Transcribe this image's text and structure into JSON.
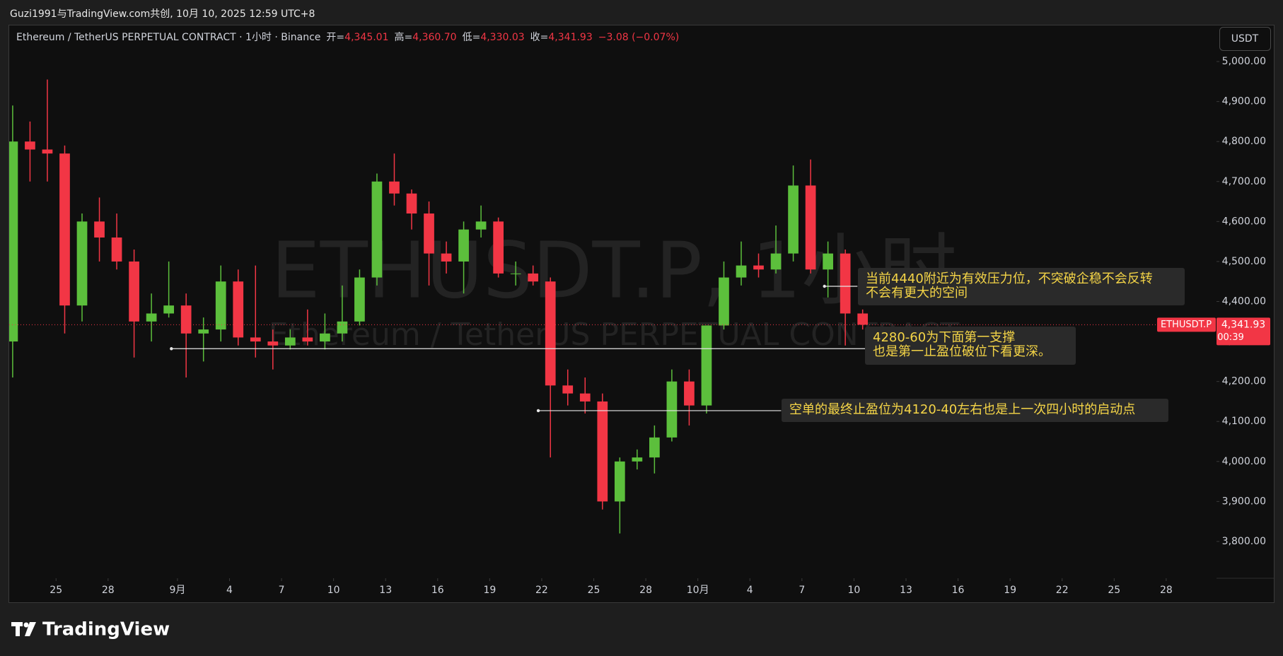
{
  "chart_data": {
    "type": "candlestick",
    "attribution": "Guzi1991与TradingView.com共创, 10月 10, 2025 12:59 UTC+8",
    "legend": {
      "title": "Ethereum / TetherUS PERPETUAL CONTRACT · 1小时 · Binance",
      "open_label": "开=",
      "open": "4,345.01",
      "high_label": "高=",
      "high": "4,360.70",
      "low_label": "低=",
      "low": "4,330.03",
      "close_label": "收=",
      "close": "4,341.93",
      "change": "−3.08 (−0.07%)"
    },
    "currency": "USDT",
    "watermark": {
      "symbol": "ETHUSDT.P, 1小时",
      "description": "Ethereum / TetherUS PERPETUAL CONTRACT"
    },
    "brand": "TradingView",
    "up_color": "#5cbf3c",
    "down_color": "#f23645",
    "grid": false,
    "x": [
      234,
      235,
      236,
      237,
      238,
      239,
      240,
      241,
      242,
      243,
      244,
      245,
      246,
      247,
      248,
      249,
      250,
      251,
      252,
      253,
      254,
      255,
      256,
      257,
      258,
      259,
      260,
      261,
      262,
      263,
      264,
      265,
      266,
      267,
      268,
      269,
      270,
      271,
      272,
      273,
      274,
      275,
      276,
      277,
      278,
      279,
      280,
      281,
      282,
      283
    ],
    "open": [
      4300,
      4800,
      4780,
      4770,
      4390,
      4600,
      4560,
      4500,
      4350,
      4370,
      4390,
      4320,
      4330,
      4450,
      4310,
      4300,
      4290,
      4310,
      4300,
      4320,
      4350,
      4460,
      4700,
      4670,
      4620,
      4520,
      4500,
      4580,
      4600,
      4470,
      4470,
      4450,
      4190,
      4170,
      4150,
      3900,
      4000,
      4010,
      4060,
      4200,
      4140,
      4340,
      4460,
      4490,
      4480,
      4520,
      4690,
      4480,
      4520,
      4370
    ],
    "high": [
      4890,
      4850,
      4955,
      4790,
      4620,
      4660,
      4620,
      4530,
      4420,
      4500,
      4420,
      4360,
      4490,
      4480,
      4490,
      4330,
      4330,
      4380,
      4370,
      4440,
      4480,
      4720,
      4770,
      4680,
      4650,
      4550,
      4600,
      4640,
      4610,
      4500,
      4490,
      4460,
      4230,
      4210,
      4170,
      4010,
      4030,
      4090,
      4230,
      4230,
      4340,
      4500,
      4550,
      4520,
      4590,
      4740,
      4755,
      4550,
      4530,
      4380
    ],
    "low": [
      4210,
      4700,
      4700,
      4320,
      4350,
      4500,
      4480,
      4260,
      4300,
      4360,
      4210,
      4250,
      4300,
      4290,
      4260,
      4230,
      4280,
      4290,
      4280,
      4300,
      4340,
      4440,
      4640,
      4580,
      4440,
      4470,
      4420,
      4560,
      4460,
      4440,
      4440,
      4010,
      4140,
      4120,
      3880,
      3820,
      3980,
      3970,
      4050,
      4090,
      4120,
      4330,
      4440,
      4460,
      4470,
      4500,
      4470,
      4410,
      4290,
      4330
    ],
    "close": [
      4800,
      4780,
      4770,
      4390,
      4600,
      4560,
      4500,
      4350,
      4370,
      4390,
      4320,
      4330,
      4450,
      4310,
      4300,
      4290,
      4310,
      4300,
      4320,
      4350,
      4460,
      4700,
      4670,
      4620,
      4520,
      4500,
      4580,
      4600,
      4470,
      4470,
      4450,
      4190,
      4170,
      4150,
      3900,
      4000,
      4010,
      4060,
      4200,
      4140,
      4340,
      4460,
      4490,
      4480,
      4520,
      4690,
      4480,
      4520,
      4370,
      4341.93
    ],
    "xlim": [
      234.3,
      303.9
    ],
    "xticks": [
      {
        "value": 237,
        "label": "25"
      },
      {
        "value": 240,
        "label": "28"
      },
      {
        "value": 244,
        "label": "9月"
      },
      {
        "value": 247,
        "label": "4"
      },
      {
        "value": 250,
        "label": "7"
      },
      {
        "value": 253,
        "label": "10"
      },
      {
        "value": 256,
        "label": "13"
      },
      {
        "value": 259,
        "label": "16"
      },
      {
        "value": 262,
        "label": "19"
      },
      {
        "value": 265,
        "label": "22"
      },
      {
        "value": 268,
        "label": "25"
      },
      {
        "value": 271,
        "label": "28"
      },
      {
        "value": 274,
        "label": "10月"
      },
      {
        "value": 277,
        "label": "4"
      },
      {
        "value": 280,
        "label": "7"
      },
      {
        "value": 283,
        "label": "10"
      },
      {
        "value": 286,
        "label": "13"
      },
      {
        "value": 289,
        "label": "16"
      },
      {
        "value": 292,
        "label": "19"
      },
      {
        "value": 295,
        "label": "22"
      },
      {
        "value": 298,
        "label": "25"
      },
      {
        "value": 301,
        "label": "28"
      }
    ],
    "ylim": [
      3708,
      5092
    ],
    "yticks": [
      {
        "value": 3800,
        "label": "3,800.00"
      },
      {
        "value": 3900,
        "label": "3,900.00"
      },
      {
        "value": 4000,
        "label": "4,000.00"
      },
      {
        "value": 4100,
        "label": "4,100.00"
      },
      {
        "value": 4200,
        "label": "4,200.00"
      },
      {
        "value": 4300,
        "label": "4,300.00"
      },
      {
        "value": 4400,
        "label": "4,400.00"
      },
      {
        "value": 4500,
        "label": "4,500.00"
      },
      {
        "value": 4600,
        "label": "4,600.00"
      },
      {
        "value": 4700,
        "label": "4,700.00"
      },
      {
        "value": 4800,
        "label": "4,800.00"
      },
      {
        "value": 4900,
        "label": "4,900.00"
      },
      {
        "value": 5000,
        "label": "5,000.00"
      }
    ],
    "last_price": {
      "symbol": "ETHUSDT.P",
      "value": 4341.93,
      "label": "4,341.93",
      "countdown": "00:39"
    },
    "annotations": [
      {
        "lines": [
          "当前4440附近为有效压力位，不突破企稳不会反转",
          "不会有更大的空间"
        ],
        "x": [
          281.3,
          283.2
        ],
        "y": 4438
      },
      {
        "lines": [
          "4280-60为下面第一支撑",
          "也是第一止盈位破位下看更深。"
        ],
        "x": [
          243.65,
          283.65
        ],
        "y": 4282
      },
      {
        "lines": [
          "空单的最终止盈位为4120-40左右也是上一次四小时的启动点"
        ],
        "x": [
          264.8,
          278.8
        ],
        "y": 4127
      }
    ]
  }
}
